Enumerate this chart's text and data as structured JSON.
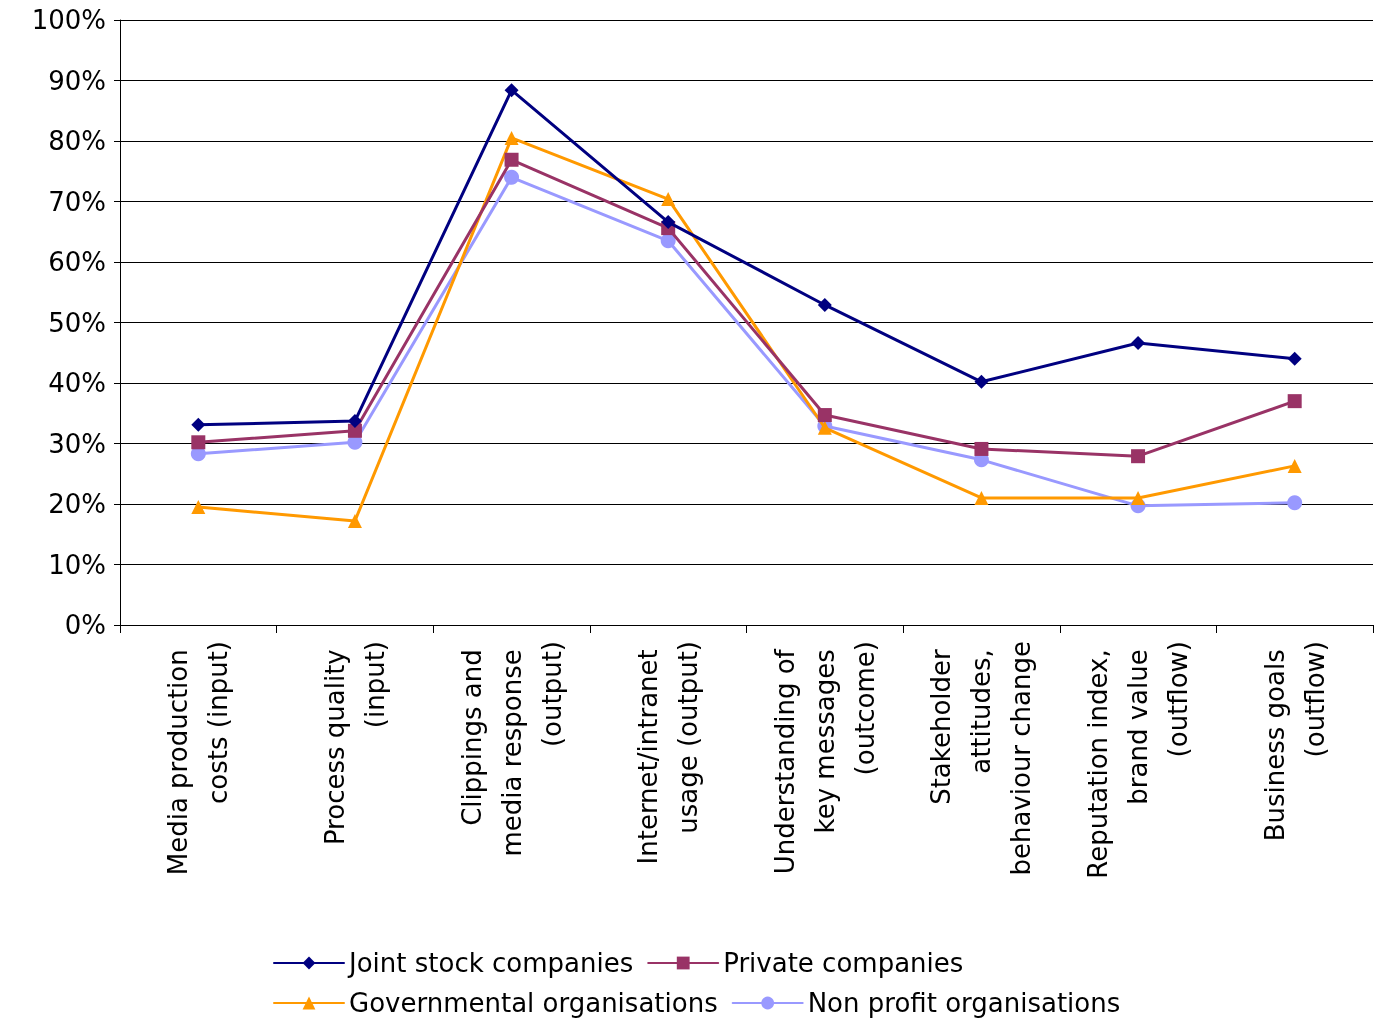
{
  "chart_data": {
    "type": "line",
    "categories": [
      "Media production costs (input)",
      "Process quality (input)",
      "Clippings and media response (output)",
      "Internet/intranet usage (output)",
      "Understanding of key messages (outcome)",
      "Stakeholder attitudes, behaviour change",
      "Reputation index, brand value (outflow)",
      "Business goals (outflow)"
    ],
    "series": [
      {
        "name": "Joint stock companies",
        "color": "#000080",
        "marker": "diamond",
        "values": [
          33.1,
          33.7,
          88.4,
          66.6,
          52.9,
          40.2,
          46.6,
          44.0
        ]
      },
      {
        "name": "Private companies",
        "color": "#993366",
        "marker": "square",
        "values": [
          30.2,
          32.1,
          76.9,
          65.6,
          34.7,
          29.1,
          27.9,
          37.0
        ]
      },
      {
        "name": "Governmental organisations",
        "color": "#ff9900",
        "marker": "triangle",
        "values": [
          19.5,
          17.2,
          80.5,
          70.4,
          32.6,
          21.0,
          21.0,
          26.3
        ]
      },
      {
        "name": "Non profit organisations",
        "color": "#9999ff",
        "marker": "circle",
        "values": [
          28.3,
          30.2,
          74.0,
          63.5,
          32.9,
          27.3,
          19.7,
          20.2
        ]
      }
    ],
    "ylim": [
      0,
      100
    ],
    "yticks": [
      {
        "value": 0,
        "label": "0%"
      },
      {
        "value": 10,
        "label": "10%"
      },
      {
        "value": 20,
        "label": "20%"
      },
      {
        "value": 30,
        "label": "30%"
      },
      {
        "value": 40,
        "label": "40%"
      },
      {
        "value": 50,
        "label": "50%"
      },
      {
        "value": 60,
        "label": "60%"
      },
      {
        "value": 70,
        "label": "70%"
      },
      {
        "value": 80,
        "label": "80%"
      },
      {
        "value": 90,
        "label": "90%"
      },
      {
        "value": 100,
        "label": "100%"
      }
    ],
    "grid": "y",
    "legend": "bottom",
    "line_style": "solid"
  }
}
